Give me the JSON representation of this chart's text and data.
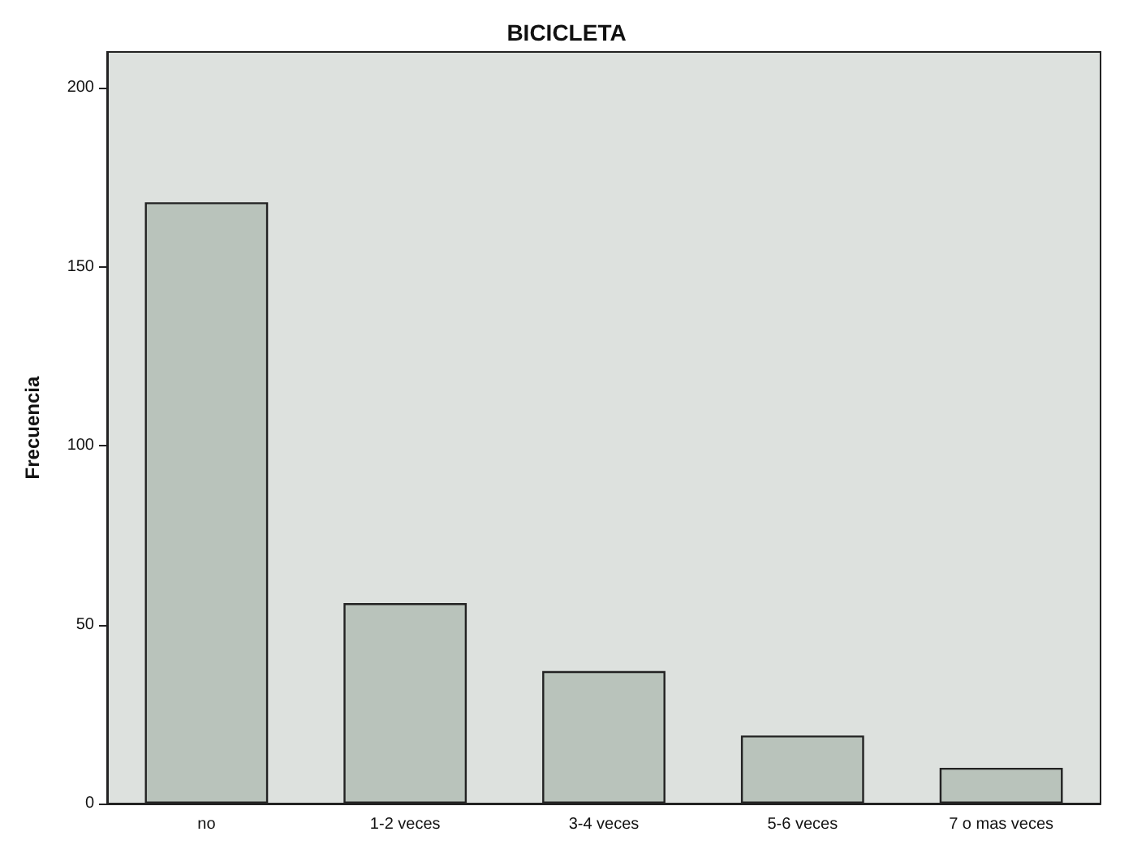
{
  "chart_data": {
    "type": "bar",
    "title": "BICICLETA",
    "ylabel": "Frecuencia",
    "categories": [
      "no",
      "1-2 veces",
      "3-4 veces",
      "5-6 veces",
      "7 o mas veces"
    ],
    "values": [
      168,
      56,
      37,
      19,
      10
    ],
    "color": "#b9c3bb",
    "ylim": [
      0,
      210
    ],
    "yticks": [
      0,
      50,
      100,
      150,
      200
    ],
    "grid": false
  }
}
